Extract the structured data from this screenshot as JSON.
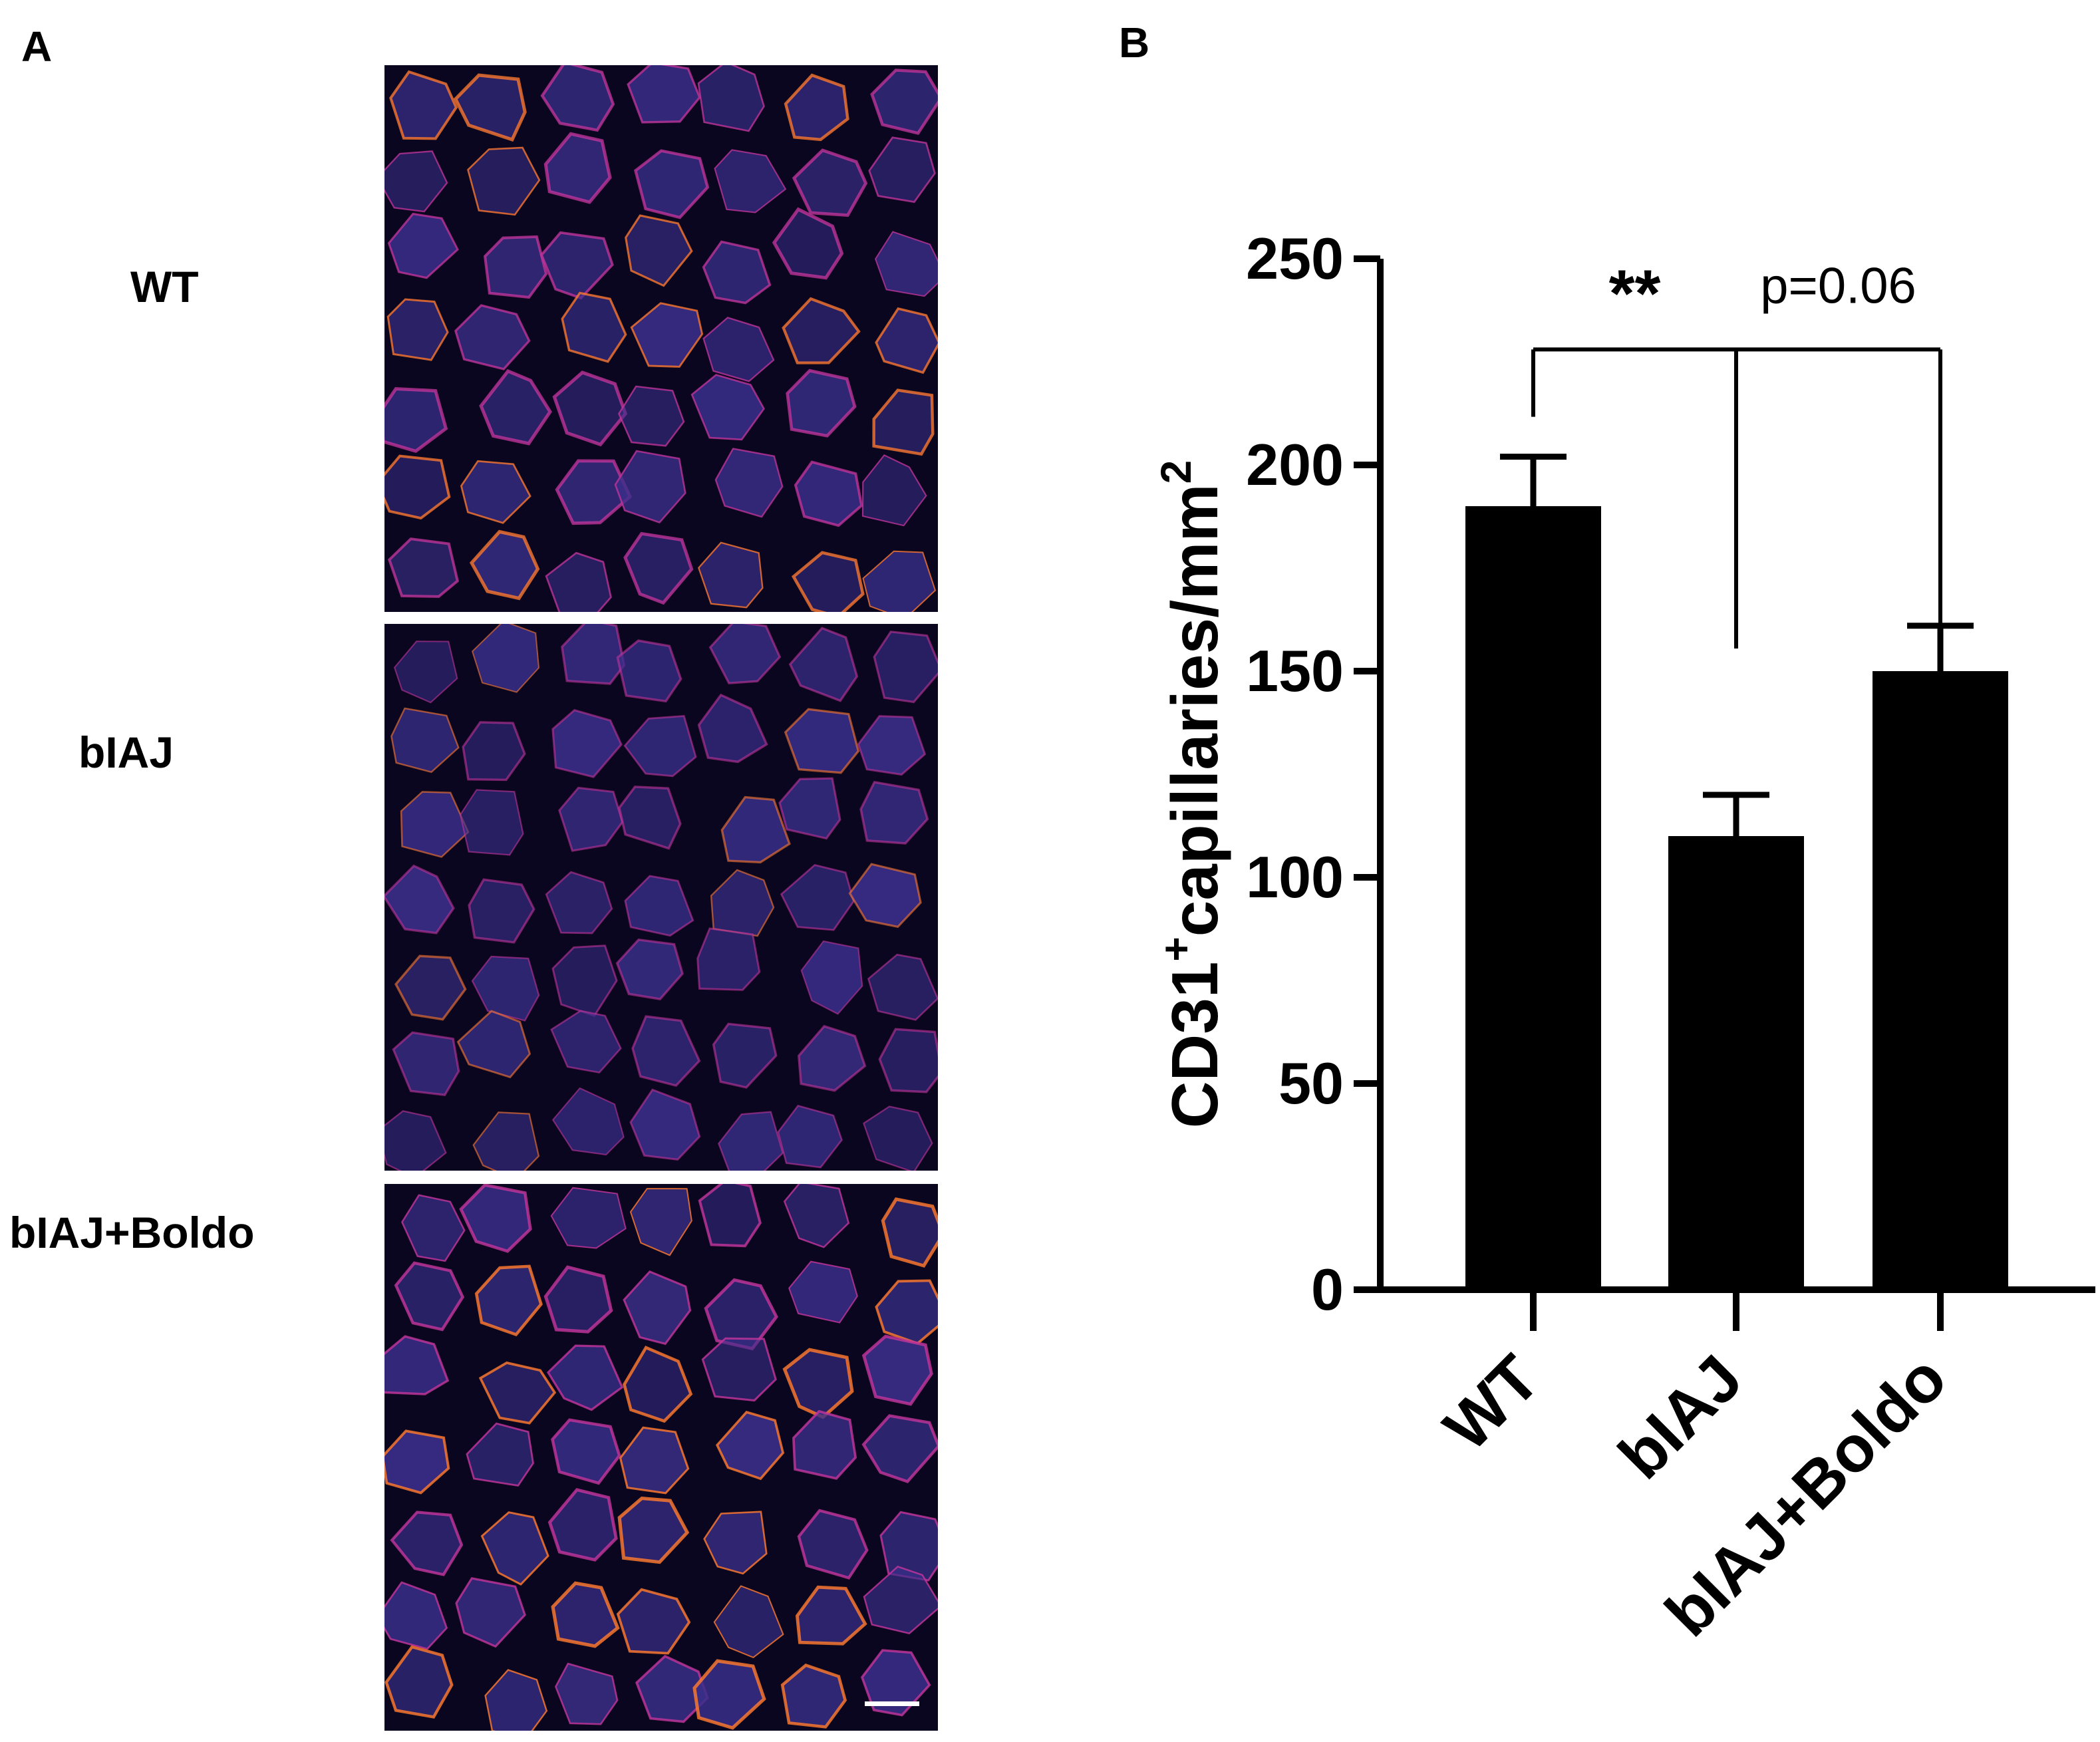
{
  "panels": {
    "a_label": "A",
    "b_label": "B"
  },
  "micrographs": {
    "rows": [
      {
        "label": "WT",
        "intensity": 0.75
      },
      {
        "label": "bIAJ",
        "intensity": 0.4
      },
      {
        "label": "bIAJ+Boldo",
        "intensity": 0.85
      }
    ],
    "colors": {
      "background": "#0b0620",
      "fiber": "#3a2f8a",
      "border": "#c2349b",
      "highlight": "#ff7a2e"
    }
  },
  "chart_data": {
    "type": "bar",
    "categories": [
      "WT",
      "bIAJ",
      "bIAJ+Boldo"
    ],
    "values": [
      190,
      110,
      150
    ],
    "errors": [
      12,
      10,
      11
    ],
    "ylabel": "CD31",
    "ylabel_superscript": "+",
    "ylabel_rest": "capillaries/mm",
    "ylabel_exponent": "2",
    "ylim": [
      0,
      250
    ],
    "yticks": [
      0,
      50,
      100,
      150,
      200,
      250
    ],
    "bar_color": "#000000",
    "annotations": [
      {
        "text": "**",
        "from": 0,
        "to": 1,
        "level": 228
      },
      {
        "text": "p=0.06",
        "from": 1,
        "to": 2,
        "level": 228
      }
    ]
  }
}
